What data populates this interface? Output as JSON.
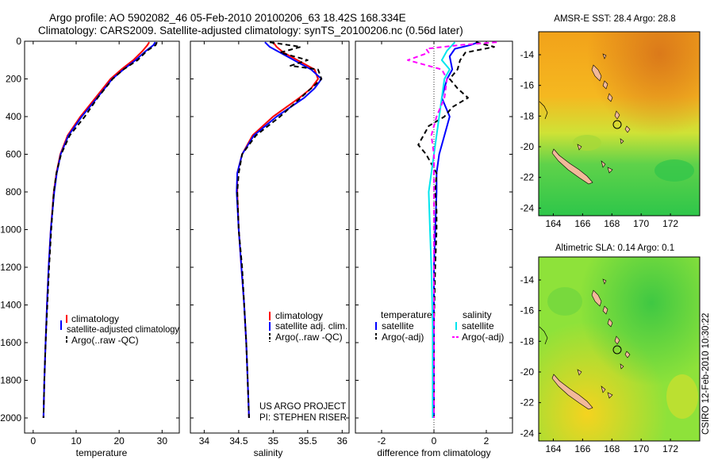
{
  "header": {
    "title_line1": "Argo profile: AO 5902082_46 05-Feb-2010 20100206_63 18.42S 168.334E",
    "title_line2": "Climatology: CARS2009. Satellite-adjusted climatology: synTS_20100206.nc (0.56d later)"
  },
  "side_stamp": "CSIRO 12-Feb-2010 10:30:22",
  "project": {
    "line1": "US ARGO PROJECT",
    "line2": "PI: STEPHEN RISER"
  },
  "colors": {
    "climatology": "#ff0000",
    "satellite": "#0000ff",
    "argo": "#000000",
    "cyan": "#00e5ee",
    "magenta": "#ff00ff"
  },
  "chart_data": [
    {
      "type": "line",
      "id": "temperature",
      "xlabel": "temperature",
      "ylabel": "",
      "xlim": [
        -2,
        34
      ],
      "ylim": [
        0,
        2080
      ],
      "y_inverted": true,
      "xticks": [
        0,
        10,
        20,
        30
      ],
      "yticks": [
        0,
        200,
        400,
        600,
        800,
        1000,
        1200,
        1400,
        1600,
        1800,
        2000
      ],
      "legend": [
        "climatology",
        "satellite-adjusted climatology",
        "Argo(..raw -QC)"
      ],
      "series": [
        {
          "name": "climatology",
          "color": "#ff0000",
          "depth": [
            5,
            20,
            50,
            100,
            150,
            200,
            300,
            400,
            500,
            600,
            700,
            800,
            1000,
            1200,
            1400,
            1600,
            1800,
            2000
          ],
          "values": [
            27.0,
            26.6,
            25.5,
            23.3,
            20.5,
            18.0,
            14.5,
            11.0,
            8.0,
            6.3,
            5.4,
            4.8,
            4.1,
            3.6,
            3.2,
            2.9,
            2.6,
            2.4
          ]
        },
        {
          "name": "satellite-adjusted climatology",
          "color": "#0000ff",
          "depth": [
            5,
            20,
            50,
            100,
            150,
            200,
            300,
            400,
            500,
            600,
            700,
            800,
            1000,
            1200,
            1400,
            1600,
            1800,
            2000
          ],
          "values": [
            28.4,
            28.0,
            26.3,
            23.8,
            21.0,
            18.4,
            14.9,
            11.3,
            8.2,
            6.4,
            5.5,
            4.9,
            4.1,
            3.6,
            3.2,
            2.9,
            2.6,
            2.4
          ]
        },
        {
          "name": "Argo(..raw -QC)",
          "color": "#000000",
          "dashed": true,
          "depth": [
            5,
            20,
            50,
            100,
            150,
            200,
            300,
            400,
            500,
            600,
            700,
            800,
            1000,
            1200,
            1400,
            1600,
            1800,
            2000
          ],
          "values": [
            28.8,
            28.5,
            26.5,
            24.3,
            21.0,
            18.5,
            15.0,
            12.0,
            8.5,
            6.5,
            5.4,
            4.8,
            4.2,
            3.7,
            3.3,
            2.9,
            2.6,
            2.4
          ]
        }
      ]
    },
    {
      "type": "line",
      "id": "salinity",
      "xlabel": "salinity",
      "ylabel": "",
      "xlim": [
        33.8,
        36.1
      ],
      "ylim": [
        0,
        2080
      ],
      "y_inverted": true,
      "xticks": [
        34,
        34.5,
        35,
        35.5,
        36
      ],
      "xticklabels": [
        "34",
        "34.5",
        "35",
        "35.5",
        "36"
      ],
      "yticks": [
        0,
        200,
        400,
        600,
        800,
        1000,
        1200,
        1400,
        1600,
        1800,
        2000
      ],
      "legend": [
        "climatology",
        "satellite adj. clim.",
        "Argo(..raw -QC)"
      ],
      "series": [
        {
          "name": "climatology",
          "color": "#ff0000",
          "depth": [
            5,
            30,
            60,
            100,
            150,
            200,
            250,
            300,
            400,
            500,
            600,
            700,
            800,
            1000,
            1200,
            1400,
            1600,
            1800,
            2000
          ],
          "values": [
            35.0,
            35.05,
            35.15,
            35.35,
            35.6,
            35.65,
            35.55,
            35.38,
            35.0,
            34.7,
            34.55,
            34.48,
            34.48,
            34.5,
            34.54,
            34.58,
            34.61,
            34.63,
            34.65
          ]
        },
        {
          "name": "satellite adj. clim.",
          "color": "#0000ff",
          "depth": [
            5,
            30,
            60,
            100,
            150,
            200,
            250,
            300,
            400,
            500,
            600,
            700,
            800,
            1000,
            1200,
            1400,
            1600,
            1800,
            2000
          ],
          "values": [
            34.88,
            34.95,
            35.1,
            35.3,
            35.55,
            35.7,
            35.6,
            35.45,
            35.05,
            34.72,
            34.55,
            34.48,
            34.47,
            34.5,
            34.54,
            34.58,
            34.61,
            34.63,
            34.65
          ]
        },
        {
          "name": "Argo(..raw -QC)",
          "color": "#000000",
          "dashed": true,
          "depth": [
            5,
            30,
            60,
            100,
            130,
            150,
            200,
            250,
            300,
            400,
            500,
            600,
            700,
            800,
            1000,
            1200,
            1400,
            1600,
            1800,
            2000
          ],
          "values": [
            34.95,
            35.4,
            35.1,
            35.5,
            35.25,
            35.65,
            35.7,
            35.55,
            35.4,
            35.1,
            34.75,
            34.55,
            34.5,
            34.48,
            34.5,
            34.55,
            34.58,
            34.61,
            34.63,
            34.65
          ]
        }
      ]
    },
    {
      "type": "line",
      "id": "difference",
      "xlabel": "difference from climatology",
      "ylabel": "",
      "xlim": [
        -3,
        3
      ],
      "ylim": [
        0,
        2080
      ],
      "y_inverted": true,
      "xticks": [
        -2,
        0,
        2
      ],
      "yticks": [
        0,
        200,
        400,
        600,
        800,
        1000,
        1200,
        1400,
        1600,
        1800,
        2000
      ],
      "legend_left": [
        "temperature",
        "satellite",
        "Argo(-adj)"
      ],
      "legend_right": [
        "salinity",
        "satellite",
        "Argo(-adj)"
      ],
      "series": [
        {
          "name": "temperature satellite",
          "color": "#0000ff",
          "depth": [
            5,
            20,
            40,
            80,
            150,
            200,
            300,
            400,
            500,
            600,
            700,
            800,
            1000,
            1200,
            1500,
            2000
          ],
          "values": [
            1.7,
            1.4,
            0.8,
            0.6,
            0.7,
            0.5,
            0.3,
            0.6,
            0.4,
            0.2,
            0.1,
            0.1,
            0.05,
            0.0,
            0.0,
            0.0
          ]
        },
        {
          "name": "temperature Argo(-adj)",
          "color": "#000000",
          "dashed": true,
          "depth": [
            5,
            30,
            60,
            100,
            150,
            200,
            250,
            300,
            350,
            400,
            450,
            500,
            550,
            600,
            650,
            700,
            800,
            900,
            1000,
            1200,
            1500,
            2000
          ],
          "values": [
            1.6,
            2.3,
            1.2,
            1.0,
            0.9,
            0.6,
            0.9,
            1.3,
            0.7,
            0.4,
            -0.2,
            -0.4,
            -0.6,
            -0.3,
            -0.1,
            0.1,
            0.05,
            0.1,
            0.1,
            0.05,
            0.0,
            0.0
          ]
        },
        {
          "name": "salinity satellite",
          "color": "#00e5ee",
          "depth": [
            5,
            50,
            100,
            150,
            200,
            300,
            400,
            500,
            600,
            700,
            800,
            1000,
            1200,
            1500,
            2000
          ],
          "values": [
            0.8,
            0.5,
            0.3,
            0.6,
            0.4,
            0.3,
            0.2,
            0.1,
            0.0,
            -0.1,
            -0.2,
            -0.15,
            -0.1,
            -0.05,
            -0.05
          ]
        },
        {
          "name": "salinity Argo(-adj)",
          "color": "#ff00ff",
          "dashed": true,
          "depth": [
            5,
            20,
            40,
            60,
            100,
            150,
            200,
            300,
            400,
            500,
            600,
            700,
            800,
            1000,
            1200,
            1500,
            2000
          ],
          "values": [
            2.4,
            1.0,
            -0.3,
            -0.2,
            -1.0,
            0.3,
            0.5,
            0.4,
            0.1,
            -0.1,
            0.0,
            0.0,
            0.0,
            0.0,
            0.0,
            0.0,
            0.0
          ]
        }
      ]
    },
    {
      "type": "heatmap",
      "id": "amsr-sst-map",
      "title": "AMSR-E SST: 28.4 Argo: 28.8",
      "xlim": [
        163,
        174
      ],
      "ylim": [
        -24.5,
        -12.5
      ],
      "xticks": [
        164,
        166,
        168,
        170,
        172
      ],
      "yticks": [
        -14,
        -16,
        -18,
        -20,
        -22,
        -24
      ],
      "marker": {
        "lon": 168.334,
        "lat": -18.42
      }
    },
    {
      "type": "heatmap",
      "id": "altimetric-sla-map",
      "title": "Altimetric SLA: 0.14 Argo: 0.1",
      "xlim": [
        163,
        174
      ],
      "ylim": [
        -24.5,
        -12.5
      ],
      "xticks": [
        164,
        166,
        168,
        170,
        172
      ],
      "yticks": [
        -14,
        -16,
        -18,
        -20,
        -22,
        -24
      ],
      "marker": {
        "lon": 168.334,
        "lat": -18.42
      }
    }
  ]
}
